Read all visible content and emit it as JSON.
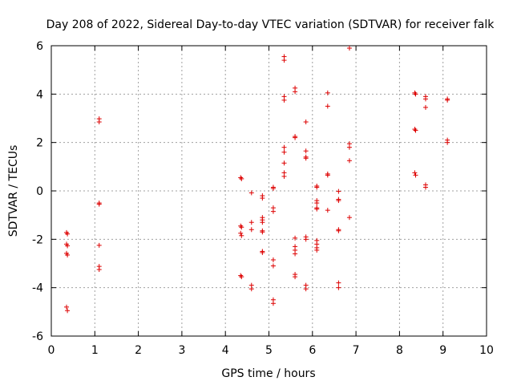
{
  "chart_data": {
    "type": "scatter",
    "title": "Day 208 of 2022, Sidereal Day-to-day VTEC variation (SDTVAR) for receiver falk",
    "xlabel": "GPS time / hours",
    "ylabel": "SDTVAR / TECUs",
    "xlim": [
      0,
      10
    ],
    "ylim": [
      -6,
      6
    ],
    "xticks": [
      0,
      1,
      2,
      3,
      4,
      5,
      6,
      7,
      8,
      9,
      10
    ],
    "yticks": [
      -6,
      -4,
      -2,
      0,
      2,
      4,
      6
    ],
    "grid": true,
    "marker": "+",
    "color": "#dd0000",
    "series": [
      {
        "name": "falk",
        "points": [
          [
            0.35,
            -1.72
          ],
          [
            0.37,
            -1.78
          ],
          [
            0.35,
            -2.2
          ],
          [
            0.37,
            -2.27
          ],
          [
            0.35,
            -2.58
          ],
          [
            0.37,
            -2.65
          ],
          [
            0.35,
            -4.8
          ],
          [
            0.37,
            -4.95
          ],
          [
            1.1,
            2.98
          ],
          [
            1.1,
            2.85
          ],
          [
            1.1,
            -0.5
          ],
          [
            1.1,
            -0.55
          ],
          [
            1.1,
            -2.25
          ],
          [
            1.1,
            -3.12
          ],
          [
            1.1,
            -3.25
          ],
          [
            4.35,
            0.55
          ],
          [
            4.37,
            0.5
          ],
          [
            4.35,
            -1.45
          ],
          [
            4.37,
            -1.5
          ],
          [
            4.35,
            -1.75
          ],
          [
            4.37,
            -1.85
          ],
          [
            4.35,
            -3.5
          ],
          [
            4.37,
            -3.55
          ],
          [
            4.6,
            -0.08
          ],
          [
            4.6,
            -1.3
          ],
          [
            4.6,
            -1.6
          ],
          [
            4.6,
            -3.9
          ],
          [
            4.6,
            -4.05
          ],
          [
            4.85,
            -0.2
          ],
          [
            4.85,
            -0.3
          ],
          [
            4.85,
            -1.1
          ],
          [
            4.85,
            -1.2
          ],
          [
            4.85,
            -1.3
          ],
          [
            4.85,
            -1.65
          ],
          [
            4.85,
            -1.7
          ],
          [
            4.85,
            -2.5
          ],
          [
            4.85,
            -2.55
          ],
          [
            5.1,
            0.15
          ],
          [
            5.1,
            0.1
          ],
          [
            5.1,
            -0.7
          ],
          [
            5.1,
            -0.85
          ],
          [
            5.1,
            -2.85
          ],
          [
            5.1,
            -3.1
          ],
          [
            5.1,
            -4.5
          ],
          [
            5.1,
            -4.65
          ],
          [
            5.35,
            5.55
          ],
          [
            5.35,
            5.4
          ],
          [
            5.35,
            3.9
          ],
          [
            5.35,
            3.75
          ],
          [
            5.35,
            1.8
          ],
          [
            5.35,
            1.6
          ],
          [
            5.35,
            1.15
          ],
          [
            5.35,
            0.75
          ],
          [
            5.35,
            0.6
          ],
          [
            5.6,
            4.25
          ],
          [
            5.6,
            4.1
          ],
          [
            5.6,
            2.25
          ],
          [
            5.6,
            2.2
          ],
          [
            5.6,
            -1.95
          ],
          [
            5.6,
            -2.3
          ],
          [
            5.6,
            -2.45
          ],
          [
            5.6,
            -2.6
          ],
          [
            5.6,
            -3.45
          ],
          [
            5.6,
            -3.55
          ],
          [
            5.85,
            2.85
          ],
          [
            5.85,
            1.65
          ],
          [
            5.85,
            1.4
          ],
          [
            5.85,
            1.35
          ],
          [
            5.85,
            -1.9
          ],
          [
            5.85,
            -2.0
          ],
          [
            5.85,
            -3.9
          ],
          [
            5.85,
            -4.05
          ],
          [
            6.1,
            0.2
          ],
          [
            6.1,
            0.15
          ],
          [
            6.1,
            -0.4
          ],
          [
            6.1,
            -0.5
          ],
          [
            6.1,
            -0.7
          ],
          [
            6.1,
            -0.75
          ],
          [
            6.1,
            -2.05
          ],
          [
            6.1,
            -2.2
          ],
          [
            6.1,
            -2.35
          ],
          [
            6.1,
            -2.45
          ],
          [
            6.35,
            4.05
          ],
          [
            6.35,
            3.5
          ],
          [
            6.35,
            0.7
          ],
          [
            6.35,
            0.65
          ],
          [
            6.35,
            -0.8
          ],
          [
            6.6,
            -0.02
          ],
          [
            6.6,
            -0.35
          ],
          [
            6.6,
            -0.4
          ],
          [
            6.6,
            -1.6
          ],
          [
            6.6,
            -1.65
          ],
          [
            6.6,
            -3.8
          ],
          [
            6.6,
            -4.0
          ],
          [
            6.85,
            5.9
          ],
          [
            6.85,
            1.95
          ],
          [
            6.85,
            1.8
          ],
          [
            6.85,
            1.25
          ],
          [
            6.85,
            -1.1
          ],
          [
            8.35,
            4.05
          ],
          [
            8.37,
            4.0
          ],
          [
            8.35,
            2.55
          ],
          [
            8.37,
            2.5
          ],
          [
            8.35,
            0.75
          ],
          [
            8.37,
            0.65
          ],
          [
            8.6,
            3.9
          ],
          [
            8.6,
            3.8
          ],
          [
            8.6,
            3.45
          ],
          [
            8.6,
            0.25
          ],
          [
            8.6,
            0.15
          ],
          [
            9.1,
            3.8
          ],
          [
            9.1,
            3.75
          ],
          [
            9.1,
            2.1
          ],
          [
            9.1,
            2.0
          ]
        ]
      }
    ]
  }
}
